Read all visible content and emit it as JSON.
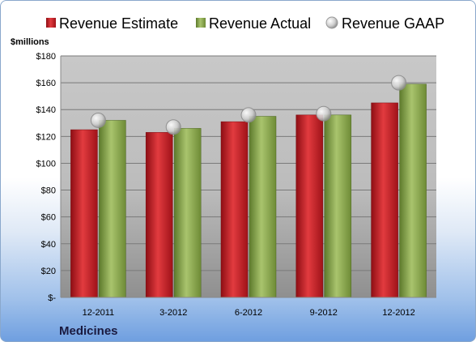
{
  "colors": {
    "estimate": "#c8202a",
    "actual": "#8fad55",
    "gaap": "#c4c4c4"
  },
  "chart_data": {
    "type": "bar",
    "title": "",
    "company": "Medicines",
    "ylabel": "$millions",
    "categories": [
      "12-2011",
      "3-2012",
      "6-2012",
      "9-2012",
      "12-2012"
    ],
    "series": [
      {
        "name": "Revenue Estimate",
        "kind": "bar",
        "values": [
          125,
          123,
          131,
          136,
          145
        ]
      },
      {
        "name": "Revenue Actual",
        "kind": "bar",
        "values": [
          132,
          126,
          135,
          136,
          159
        ]
      },
      {
        "name": "Revenue GAAP",
        "kind": "marker",
        "values": [
          132,
          127,
          136,
          137,
          160
        ]
      }
    ],
    "ylim": [
      0,
      180
    ],
    "yticks": [
      0,
      20,
      40,
      60,
      80,
      100,
      120,
      140,
      160,
      180
    ],
    "ytick_labels": [
      "$-",
      "$20",
      "$40",
      "$60",
      "$80",
      "$100",
      "$120",
      "$140",
      "$160",
      "$180"
    ],
    "grid": true,
    "legend_position": "top"
  }
}
